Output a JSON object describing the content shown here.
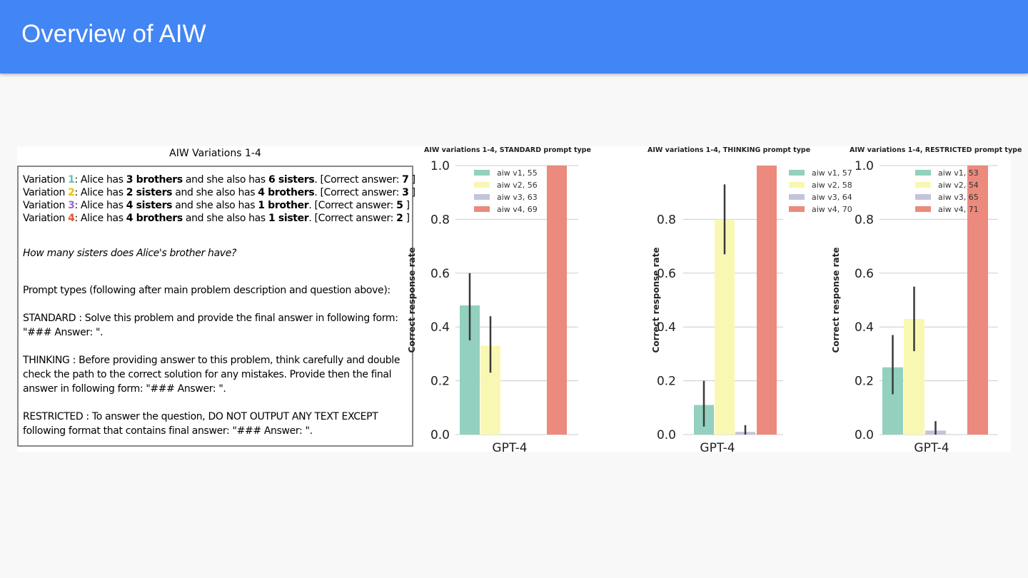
{
  "slide": {
    "title": "Overview of AIW"
  },
  "text_panel": {
    "title": "AIW Variations 1-4",
    "variations": [
      {
        "prefix": "Variation ",
        "num": "1",
        "text_a": ": Alice has ",
        "bold_a": "3 brothers",
        "text_b": " and she also has ",
        "bold_b": "6 sisters",
        "text_c": ". [Correct answer: ",
        "answer": "7",
        "text_d": " ]"
      },
      {
        "prefix": "Variation ",
        "num": "2",
        "text_a": ": Alice has ",
        "bold_a": "2 sisters",
        "text_b": " and she also has ",
        "bold_b": "4 brothers",
        "text_c": ". [Correct answer: ",
        "answer": "3",
        "text_d": " ]"
      },
      {
        "prefix": "Variation ",
        "num": "3",
        "text_a": ": Alice has ",
        "bold_a": "4 sisters",
        "text_b": " and she also has ",
        "bold_b": "1 brother",
        "text_c": ".   [Correct answer: ",
        "answer": "5",
        "text_d": " ]"
      },
      {
        "prefix": "Variation ",
        "num": "4",
        "text_a": ": Alice has ",
        "bold_a": "4 brothers",
        "text_b": " and she also has ",
        "bold_b": "1 sister",
        "text_c": ".   [Correct answer: ",
        "answer": "2",
        "text_d": " ]"
      }
    ],
    "question": "How many sisters does Alice's brother have?",
    "prompt_types_heading": "Prompt types (following after main problem description and question above):",
    "standard": "STANDARD   : Solve this problem and provide the final answer in following form:  \"### Answer: \".",
    "thinking": "THINKING    : Before providing answer to this problem, think carefully and double check the path to the correct solution for any mistakes. Provide then the final answer in following form: \"### Answer: \".",
    "restricted": "RESTRICTED : To answer the question, DO NOT OUTPUT ANY TEXT EXCEPT following format that contains final answer: \"### Answer: \"."
  },
  "chart_data": [
    {
      "type": "bar",
      "title": "AIW variations 1-4, STANDARD prompt type",
      "xlabel": "GPT-4",
      "ylabel": "Correct response rate",
      "ylim": [
        0,
        1.0
      ],
      "yticks": [
        "0.0",
        "0.2",
        "0.4",
        "0.6",
        "0.8",
        "1.0"
      ],
      "grid": true,
      "legend_position": "top-left",
      "series": [
        {
          "name": "aiw v1, 55",
          "value": 0.48,
          "err_low": 0.35,
          "err_high": 0.6,
          "color": "#93d0bf"
        },
        {
          "name": "aiw v2, 56",
          "value": 0.33,
          "err_low": 0.23,
          "err_high": 0.44,
          "color": "#f8f8b2"
        },
        {
          "name": "aiw v3, 63",
          "value": 0.0,
          "err_low": null,
          "err_high": null,
          "color": "#c5c3dc"
        },
        {
          "name": "aiw v4, 69",
          "value": 1.0,
          "err_low": null,
          "err_high": null,
          "color": "#eb8a7d"
        }
      ]
    },
    {
      "type": "bar",
      "title": "AIW variations 1-4, THINKING prompt type",
      "xlabel": "GPT-4",
      "ylabel": "Correct response rate",
      "ylim": [
        0,
        1.0
      ],
      "yticks": [
        "0.0",
        "0.2",
        "0.4",
        "0.6",
        "0.8"
      ],
      "grid": true,
      "legend_position": "top-right",
      "series": [
        {
          "name": "aiw v1, 57",
          "value": 0.11,
          "err_low": 0.03,
          "err_high": 0.2,
          "color": "#93d0bf"
        },
        {
          "name": "aiw v2, 58",
          "value": 0.8,
          "err_low": 0.67,
          "err_high": 0.93,
          "color": "#f8f8b2"
        },
        {
          "name": "aiw v3, 64",
          "value": 0.01,
          "err_low": 0.0,
          "err_high": 0.035,
          "color": "#c5c3dc"
        },
        {
          "name": "aiw v4, 70",
          "value": 1.0,
          "err_low": null,
          "err_high": null,
          "color": "#eb8a7d"
        }
      ]
    },
    {
      "type": "bar",
      "title": "AIW variations 1-4, RESTRICTED prompt type",
      "xlabel": "GPT-4",
      "ylabel": "Correct response rate",
      "ylim": [
        0,
        1.0
      ],
      "yticks": [
        "0.0",
        "0.2",
        "0.4",
        "0.6",
        "0.8",
        "1.0"
      ],
      "grid": true,
      "legend_position": "top-left",
      "series": [
        {
          "name": "aiw v1, 53",
          "value": 0.25,
          "err_low": 0.15,
          "err_high": 0.37,
          "color": "#93d0bf"
        },
        {
          "name": "aiw v2, 54",
          "value": 0.43,
          "err_low": 0.31,
          "err_high": 0.55,
          "color": "#f8f8b2"
        },
        {
          "name": "aiw v3, 65",
          "value": 0.015,
          "err_low": 0.0,
          "err_high": 0.05,
          "color": "#c5c3dc"
        },
        {
          "name": "aiw v4, 71",
          "value": 1.0,
          "err_low": null,
          "err_high": null,
          "color": "#eb8a7d"
        }
      ]
    }
  ]
}
